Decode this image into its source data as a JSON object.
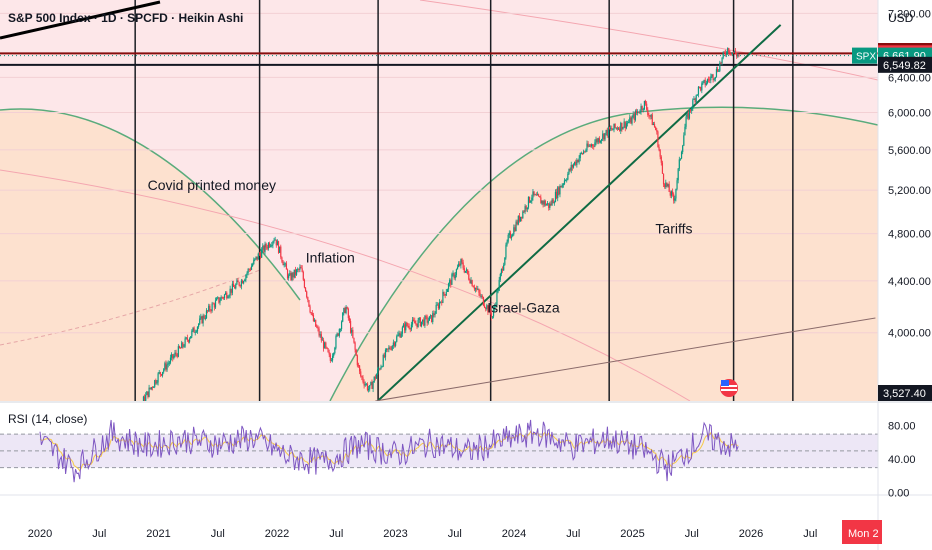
{
  "header": {
    "title": "S&P 500 Index · 1D · SPCFD · Heikin Ashi",
    "currency": "USD"
  },
  "annotations": [
    {
      "text": "Covid printed money",
      "date": "2021.45",
      "price": 5200
    },
    {
      "text": "Inflation",
      "date": "2022.45",
      "price": 4550
    },
    {
      "text": "Israel-Gaza",
      "date": "2024.08",
      "price": 4150
    },
    {
      "text": "Tariffs",
      "date": "2025.35",
      "price": 4800
    }
  ],
  "chart_data": [
    {
      "type": "line",
      "name": "main-price-chart",
      "style": "Heikin Ashi candles",
      "x_axis": {
        "ticks": [
          "2020",
          "Jul",
          "2021",
          "Jul",
          "2022",
          "Jul",
          "2023",
          "Jul",
          "2024",
          "Jul",
          "2025",
          "Jul",
          "2026",
          "Jul",
          "Mon 2"
        ]
      },
      "y_axis": {
        "scale": "log",
        "ticks": [
          "7,200.00",
          "6,400.00",
          "6,000.00",
          "5,600.00",
          "5,200.00",
          "4,800.00",
          "4,400.00",
          "4,000.00"
        ],
        "visible_range": [
          3527.4,
          7380
        ]
      },
      "price_labels": [
        {
          "value": "6,764.58",
          "role": "high",
          "color": "#880e0e"
        },
        {
          "value": "6,689.91",
          "role": "resistance",
          "color": "#f23645"
        },
        {
          "value": "SPX",
          "role": "symbol",
          "color": "#089981"
        },
        {
          "value": "6,661.90",
          "role": "last",
          "color": "#089981"
        },
        {
          "value": "6,549.82",
          "role": "support",
          "color": "#131722"
        },
        {
          "value": "3,527.40",
          "role": "low",
          "color": "#131722"
        }
      ],
      "series": [
        {
          "name": "SPX",
          "x": [
            "2020.55",
            "2020.85",
            "2021.00",
            "2021.20",
            "2021.45",
            "2021.70",
            "2021.85",
            "2021.98",
            "2022.10",
            "2022.20",
            "2022.30",
            "2022.45",
            "2022.58",
            "2022.70",
            "2022.78",
            "2022.92",
            "2023.08",
            "2023.30",
            "2023.55",
            "2023.70",
            "2023.82",
            "2023.95",
            "2024.15",
            "2024.30",
            "2024.50",
            "2024.60",
            "2024.80",
            "2024.98",
            "2025.10",
            "2025.20",
            "2025.26",
            "2025.35",
            "2025.45",
            "2025.55",
            "2025.70",
            "2025.80",
            "2025.85",
            "2025.90"
          ],
          "values": [
            3280,
            3500,
            3700,
            3900,
            4200,
            4400,
            4620,
            4770,
            4420,
            4500,
            4100,
            3800,
            4200,
            3700,
            3600,
            3850,
            4050,
            4100,
            4550,
            4300,
            4120,
            4750,
            5150,
            5050,
            5450,
            5600,
            5800,
            5900,
            6100,
            5800,
            5300,
            5100,
            5900,
            6250,
            6450,
            6750,
            6700,
            6661.9
          ],
          "color": "#089981"
        }
      ],
      "overlays": [
        {
          "type": "horizontal-line",
          "value": 6689.91,
          "color": "#880e0e"
        },
        {
          "type": "horizontal-line",
          "value": 6549.82,
          "color": "#131722"
        },
        {
          "type": "trendline",
          "from": [
            "2022.85",
            3527.4
          ],
          "to": [
            "2026.25",
            7050
          ],
          "color": "#0f6b44"
        },
        {
          "type": "trendline",
          "from": [
            "2022.83",
            3527.4
          ],
          "to": [
            "2027.05",
            4110
          ],
          "color": "#8a6a6a"
        },
        {
          "type": "vertical-cycle-lines",
          "x": [
            "2020.55",
            "2021.60",
            "2022.60",
            "2023.55",
            "2024.55",
            "2025.60"
          ],
          "color": "#1b1e24"
        },
        {
          "type": "cycle-arcs",
          "color": "#5aab7c"
        }
      ],
      "grid": true
    },
    {
      "type": "line",
      "name": "rsi-panel",
      "legend": "RSI (14, close)",
      "y_axis": {
        "ticks": [
          "80.00",
          "40.00",
          "0.00"
        ],
        "range": [
          0,
          100
        ]
      },
      "bands": {
        "upper": 70,
        "middle": 50,
        "lower": 30
      },
      "series": [
        {
          "name": "RSI",
          "x": [
            "2020.0",
            "2020.3",
            "2020.6",
            "2020.9",
            "2021.2",
            "2021.5",
            "2021.8",
            "2022.1",
            "2022.4",
            "2022.7",
            "2023.0",
            "2023.3",
            "2023.6",
            "2023.9",
            "2024.2",
            "2024.5",
            "2024.8",
            "2025.1",
            "2025.3",
            "2025.6",
            "2025.9"
          ],
          "values": [
            62,
            28,
            70,
            55,
            64,
            58,
            66,
            42,
            36,
            58,
            45,
            60,
            48,
            62,
            72,
            55,
            65,
            50,
            30,
            68,
            52
          ],
          "color": "#7e57c2"
        }
      ]
    }
  ]
}
